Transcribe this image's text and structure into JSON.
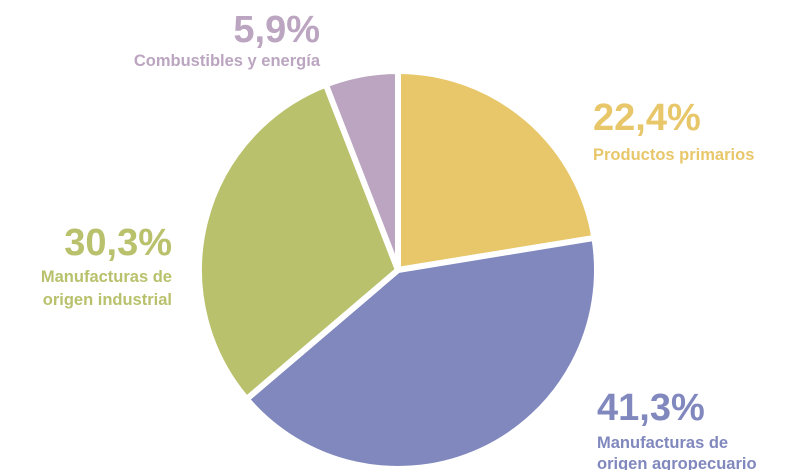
{
  "chart_data": {
    "type": "pie",
    "start_angle_deg": 0,
    "direction": "clockwise",
    "slices": [
      {
        "label_lines": [
          "Productos primarios"
        ],
        "value": 22.4,
        "value_label": "22,4%",
        "color": "#E8C76A"
      },
      {
        "label_lines": [
          "Manufacturas de",
          "origen agropecuario"
        ],
        "value": 41.3,
        "value_label": "41,3%",
        "color": "#8088BE"
      },
      {
        "label_lines": [
          "Manufacturas de",
          "origen industrial"
        ],
        "value": 30.3,
        "value_label": "30,3%",
        "color": "#B9C16C"
      },
      {
        "label_lines": [
          "Combustibles y energía"
        ],
        "value": 5.9,
        "value_label": "5,9%",
        "color": "#BBA5C0"
      }
    ]
  }
}
